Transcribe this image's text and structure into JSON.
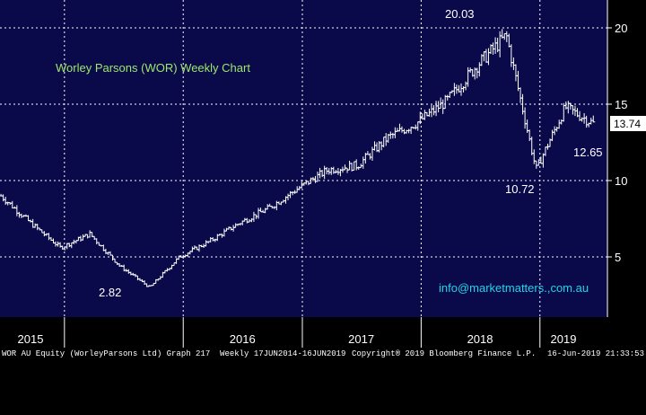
{
  "chart_data": {
    "type": "ohlc",
    "title": "Worley Parsons (WOR) Weekly Chart",
    "contact": "info@marketmatters.,com.au",
    "yticks": [
      "20",
      "15",
      "10",
      "5"
    ],
    "ylim": [
      2,
      21
    ],
    "x_labels": [
      "2015",
      "2016",
      "2017",
      "2018",
      "2019"
    ],
    "annotations": [
      "20.03",
      "10.72",
      "12.65",
      "2.82"
    ],
    "last_price": "13.74",
    "colors": {
      "background": "#0a0a4a",
      "bars": "#ffffff",
      "title": "#9ee86a",
      "contact": "#22d3e6",
      "grid": "#ffffff"
    },
    "grid": true,
    "series": [
      {
        "date": [
          "2014-06-20",
          "2014-09-20",
          "2014-12-20",
          "2015-03-20",
          "2015-06-20",
          "2015-09-20",
          "2015-12-20",
          "2016-03-20",
          "2016-06-20",
          "2016-09-20",
          "2016-12-20",
          "2017-03-20",
          "2017-06-20",
          "2017-09-20",
          "2017-12-20",
          "2018-03-20",
          "2018-06-20",
          "2018-09-20",
          "2018-12-20",
          "2019-03-20",
          "2019-06-14"
        ],
        "close": [
          9.0,
          7.2,
          5.6,
          6.5,
          4.4,
          3.0,
          5.0,
          6.0,
          7.2,
          8.2,
          9.5,
          10.7,
          11.0,
          12.8,
          13.8,
          15.2,
          17.5,
          19.5,
          10.72,
          14.8,
          13.74
        ]
      }
    ]
  },
  "footer": {
    "left": "WOR AU Equity (WorleyParsons Ltd) Graph 217  Weekly 17JUN2014-16JUN2019",
    "middle": "Copyright® 2019 Bloomberg Finance L.P.",
    "right": "16-Jun-2019 21:33:53"
  }
}
